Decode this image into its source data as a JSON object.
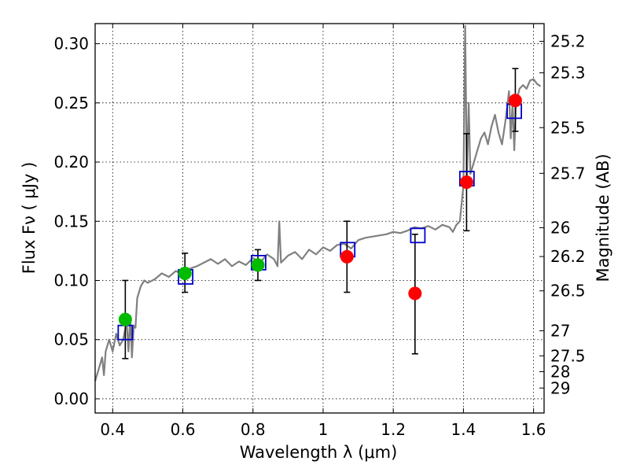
{
  "chart_data": {
    "type": "scatter",
    "title": "",
    "xlabel": "Wavelength  λ (μm)",
    "ylabel": "Flux  Fν  ( μJy )",
    "ylabel_right": "Magnitude (AB)",
    "xlim": [
      0.35,
      1.63
    ],
    "ylim": [
      -0.012,
      0.317
    ],
    "grid": true,
    "x_ticks": [
      {
        "value": 0.4,
        "label": "0.4"
      },
      {
        "value": 0.6,
        "label": "0.6"
      },
      {
        "value": 0.8,
        "label": "0.8"
      },
      {
        "value": 1.0,
        "label": "1"
      },
      {
        "value": 1.2,
        "label": "1.2"
      },
      {
        "value": 1.4,
        "label": "1.4"
      },
      {
        "value": 1.6,
        "label": "1.6"
      }
    ],
    "y_ticks": [
      {
        "value": 0.0,
        "label": "0.00"
      },
      {
        "value": 0.05,
        "label": "0.05"
      },
      {
        "value": 0.1,
        "label": "0.10"
      },
      {
        "value": 0.15,
        "label": "0.15"
      },
      {
        "value": 0.2,
        "label": "0.20"
      },
      {
        "value": 0.25,
        "label": "0.25"
      },
      {
        "value": 0.3,
        "label": "0.30"
      }
    ],
    "right_ticks": [
      {
        "flux": 0.302,
        "label": "25.2"
      },
      {
        "flux": 0.2754,
        "label": "25.3"
      },
      {
        "flux": 0.2291,
        "label": "25.5"
      },
      {
        "flux": 0.1905,
        "label": "25.7"
      },
      {
        "flux": 0.1445,
        "label": "26"
      },
      {
        "flux": 0.1202,
        "label": "26.2"
      },
      {
        "flux": 0.0912,
        "label": "26.5"
      },
      {
        "flux": 0.0575,
        "label": "27"
      },
      {
        "flux": 0.0363,
        "label": "27.5"
      },
      {
        "flux": 0.0229,
        "label": "28"
      },
      {
        "flux": 0.0091,
        "label": "29"
      }
    ],
    "model_spectrum": {
      "color": "#808080",
      "x": [
        0.35,
        0.36,
        0.37,
        0.375,
        0.38,
        0.39,
        0.4,
        0.41,
        0.42,
        0.43,
        0.44,
        0.445,
        0.45,
        0.455,
        0.46,
        0.465,
        0.47,
        0.48,
        0.49,
        0.5,
        0.52,
        0.54,
        0.56,
        0.58,
        0.6,
        0.62,
        0.64,
        0.66,
        0.68,
        0.7,
        0.72,
        0.74,
        0.76,
        0.78,
        0.8,
        0.82,
        0.84,
        0.86,
        0.87,
        0.875,
        0.88,
        0.89,
        0.9,
        0.92,
        0.94,
        0.96,
        0.98,
        1.0,
        1.02,
        1.04,
        1.06,
        1.08,
        1.1,
        1.12,
        1.14,
        1.16,
        1.18,
        1.2,
        1.22,
        1.24,
        1.26,
        1.28,
        1.3,
        1.32,
        1.34,
        1.36,
        1.37,
        1.38,
        1.39,
        1.4,
        1.405,
        1.41,
        1.415,
        1.42,
        1.43,
        1.44,
        1.45,
        1.46,
        1.47,
        1.48,
        1.49,
        1.5,
        1.51,
        1.52,
        1.53,
        1.535,
        1.54,
        1.545,
        1.55,
        1.56,
        1.57,
        1.58,
        1.59,
        1.6,
        1.61,
        1.62
      ],
      "y": [
        0.015,
        0.025,
        0.035,
        0.02,
        0.04,
        0.05,
        0.04,
        0.055,
        0.045,
        0.05,
        0.065,
        0.04,
        0.07,
        0.035,
        0.062,
        0.06,
        0.085,
        0.095,
        0.1,
        0.098,
        0.101,
        0.106,
        0.103,
        0.108,
        0.105,
        0.11,
        0.112,
        0.115,
        0.118,
        0.114,
        0.118,
        0.112,
        0.116,
        0.113,
        0.119,
        0.115,
        0.122,
        0.118,
        0.112,
        0.15,
        0.115,
        0.118,
        0.121,
        0.124,
        0.118,
        0.126,
        0.122,
        0.128,
        0.125,
        0.13,
        0.131,
        0.127,
        0.134,
        0.136,
        0.137,
        0.138,
        0.139,
        0.141,
        0.14,
        0.142,
        0.145,
        0.144,
        0.146,
        0.143,
        0.147,
        0.145,
        0.141,
        0.147,
        0.15,
        0.18,
        0.315,
        0.185,
        0.25,
        0.19,
        0.2,
        0.21,
        0.22,
        0.225,
        0.215,
        0.23,
        0.24,
        0.225,
        0.215,
        0.235,
        0.26,
        0.22,
        0.25,
        0.21,
        0.25,
        0.262,
        0.265,
        0.262,
        0.269,
        0.27,
        0.266,
        0.264
      ]
    },
    "series": [
      {
        "marker": "square",
        "color": "#0000cc",
        "points": [
          [
            0.436,
            0.056
          ],
          [
            0.608,
            0.103
          ],
          [
            0.816,
            0.115
          ],
          [
            1.07,
            0.126
          ],
          [
            1.27,
            0.138
          ],
          [
            1.41,
            0.186
          ],
          [
            1.545,
            0.243
          ]
        ]
      },
      {
        "marker": "circle",
        "color": "#00bb00",
        "points": [
          [
            0.436,
            0.067
          ],
          [
            0.606,
            0.106
          ],
          [
            0.814,
            0.113
          ]
        ]
      },
      {
        "marker": "circle",
        "color": "#ff0000",
        "points": [
          [
            1.068,
            0.12
          ],
          [
            1.262,
            0.089
          ],
          [
            1.409,
            0.183
          ],
          [
            1.548,
            0.252
          ]
        ]
      }
    ],
    "error_bars": [
      {
        "x": 0.436,
        "low": 0.034,
        "high": 0.1
      },
      {
        "x": 0.606,
        "low": 0.09,
        "high": 0.123
      },
      {
        "x": 0.814,
        "low": 0.1,
        "high": 0.126
      },
      {
        "x": 1.068,
        "low": 0.09,
        "high": 0.15
      },
      {
        "x": 1.262,
        "low": 0.038,
        "high": 0.139
      },
      {
        "x": 1.409,
        "low": 0.142,
        "high": 0.224
      },
      {
        "x": 1.548,
        "low": 0.226,
        "high": 0.279
      }
    ]
  }
}
